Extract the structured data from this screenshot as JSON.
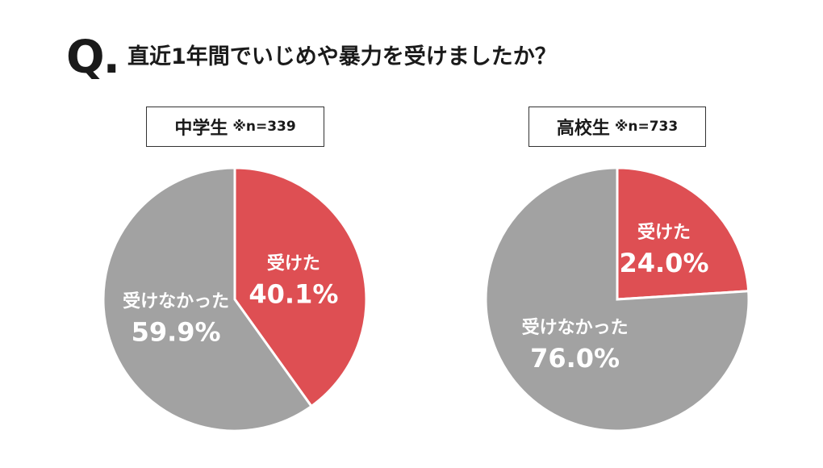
{
  "question": {
    "mark": "Q.",
    "text": "直近1年間でいじめや暴力を受けましたか？"
  },
  "colors": {
    "received": "#de4f53",
    "not_received": "#a2a2a2"
  },
  "chart_data": [
    {
      "type": "pie",
      "group": "中学生",
      "sample": "※n=339",
      "slices": [
        {
          "label": "受けた",
          "value": 40.1,
          "value_label": "40.1%",
          "color": "#de4f53"
        },
        {
          "label": "受けなかった",
          "value": 59.9,
          "value_label": "59.9%",
          "color": "#a2a2a2"
        }
      ]
    },
    {
      "type": "pie",
      "group": "高校生",
      "sample": "※n=733",
      "slices": [
        {
          "label": "受けた",
          "value": 24.0,
          "value_label": "24.0%",
          "color": "#de4f53"
        },
        {
          "label": "受けなかった",
          "value": 76.0,
          "value_label": "76.0%",
          "color": "#a2a2a2"
        }
      ]
    }
  ]
}
